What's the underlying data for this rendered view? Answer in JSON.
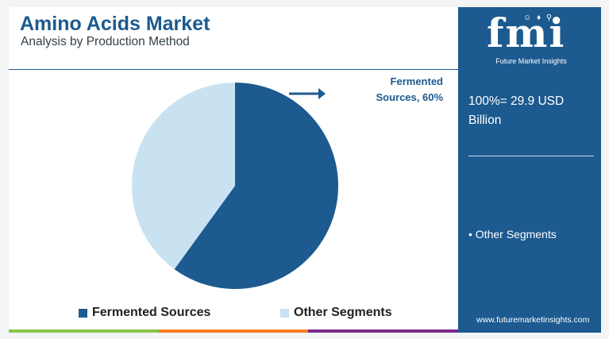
{
  "header": {
    "title": "Amino Acids Market",
    "subtitle": "Analysis by Production Method"
  },
  "chart_data": {
    "type": "pie",
    "slices": [
      {
        "label": "Fermented Sources",
        "value": 60,
        "color": "#1c5a8f"
      },
      {
        "label": "Other Segments",
        "value": 40,
        "color": "#c9e2f2"
      }
    ],
    "callout": "Fermented Sources, 60%",
    "legend": [
      "Fermented Sources",
      "Other Segments"
    ],
    "legend_position": "bottom"
  },
  "sidebar": {
    "brand_letters": "fmi",
    "brand_tagline": "Future Market Insights",
    "total_label": "100%= 29.9 USD Billion",
    "segment_note": "• Other Segments",
    "website": "www.futuremarketinsights.com"
  },
  "colors": {
    "brand_blue": "#1c5a8f",
    "light_blue": "#c9e2f2",
    "bottom_bar": [
      "#8bc34a",
      "#f57c20",
      "#7b2b8c"
    ]
  }
}
